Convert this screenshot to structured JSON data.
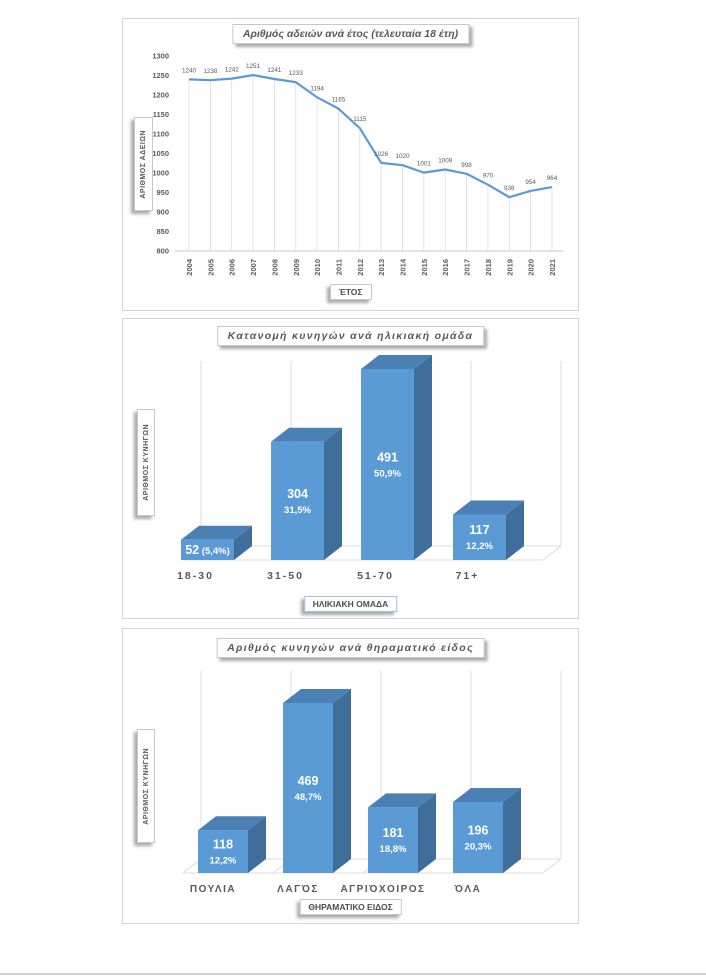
{
  "colors": {
    "series_blue": "#5B9BD5",
    "bar_top": "#4B80B4",
    "bar_side": "#3F6E9A",
    "grid_gray": "#DCDCDC",
    "axis_gray": "#C9C9C9",
    "text_gray": "#595959",
    "bar_label_white": "#FFFFFF",
    "xlabel_box_blue_border": "#9CC2E5",
    "page_line_gray": "#D2D2D2"
  },
  "chart_data": [
    {
      "type": "line",
      "title": "Αριθμός αδειών ανά έτος (τελευταία 18 έτη)",
      "xlabel": "ΈΤΟΣ",
      "ylabel": "ΑΡΙΘΜΟΣ ΑΔΕΙΩΝ",
      "categories": [
        "2004",
        "2005",
        "2006",
        "2007",
        "2008",
        "2009",
        "2010",
        "2011",
        "2012",
        "2013",
        "2014",
        "2015",
        "2016",
        "2017",
        "2018",
        "2019",
        "2020",
        "2021"
      ],
      "values": [
        1240,
        1238,
        1242,
        1251,
        1241,
        1233,
        1194,
        1165,
        1115,
        1026,
        1020,
        1001,
        1009,
        998,
        970,
        938,
        954,
        964
      ],
      "ylim": [
        800,
        1300
      ],
      "ytick_step": 50,
      "ytick_labels": [
        "800",
        "850",
        "900",
        "950",
        "1000",
        "1050",
        "1100",
        "1150",
        "1200",
        "1250",
        "1300"
      ],
      "grid": "vertical-drop-lines",
      "legend": "none",
      "data_labels": "above-points"
    },
    {
      "type": "bar",
      "style": "3d-column",
      "title": "Κατανομή κυνηγών ανά ηλικιακή ομάδα",
      "xlabel": "ΗΛΙΚΙΑΚΗ ΟΜΑΔΑ",
      "ylabel": "ΑΡΙΘΜΟΣ ΚΥΝΗΓΩΝ",
      "categories": [
        "18-30",
        "31-50",
        "51-70",
        "71+"
      ],
      "values": [
        52,
        304,
        491,
        117
      ],
      "percent_labels": [
        "(5,4%)",
        "31,5%",
        "50,9%",
        "12,2%"
      ],
      "inline_labels": [
        true,
        false,
        false,
        false
      ],
      "legend": "none",
      "xlabel_border": "#9CC2E5"
    },
    {
      "type": "bar",
      "style": "3d-column",
      "title": "Αριθμός κυνηγών ανά θηραματικό είδος",
      "xlabel": "ΘΗΡΑΜΑΤΙΚΟ ΕΙΔΟΣ",
      "ylabel": "ΑΡΙΘΜΟΣ ΚΥΝΗΓΩΝ",
      "categories": [
        "ΠΟΥΛΙΑ",
        "ΛΑΓΌΣ",
        "ΑΓΡΙΌΧΟΙΡΟΣ",
        "ΌΛΑ"
      ],
      "values": [
        118,
        469,
        181,
        196
      ],
      "percent_labels": [
        "12,2%",
        "48,7%",
        "18,8%",
        "20,3%"
      ],
      "inline_labels": [
        false,
        false,
        false,
        false
      ],
      "legend": "none"
    }
  ]
}
